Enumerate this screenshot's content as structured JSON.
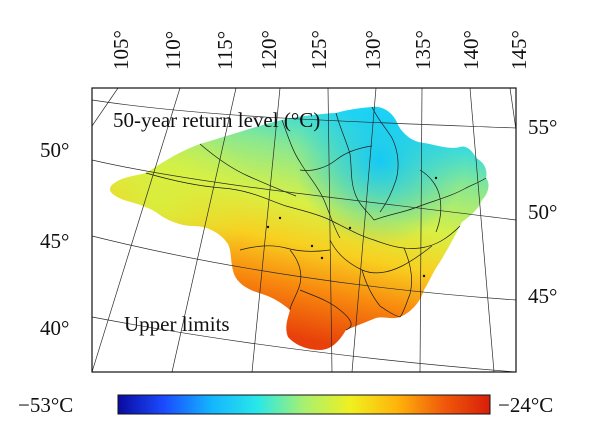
{
  "map": {
    "inset_title": "50-year return level (°C)",
    "inset_label": "Upper limits",
    "top_longitude_labels": [
      "105°",
      "110°",
      "115°",
      "120°",
      "125°",
      "130°",
      "135°",
      "140°",
      "145°"
    ],
    "left_latitude_labels": [
      "50°",
      "45°",
      "40°"
    ],
    "right_latitude_labels": [
      "55°",
      "50°",
      "45°"
    ]
  },
  "colorbar": {
    "min_label": "−53°C",
    "max_label": "−24°C",
    "colors": [
      "#0a0aa0",
      "#1a4cff",
      "#14b4ff",
      "#28e8e8",
      "#a8f070",
      "#f0f020",
      "#ffb40a",
      "#f05a0a",
      "#d81e0a"
    ]
  }
}
